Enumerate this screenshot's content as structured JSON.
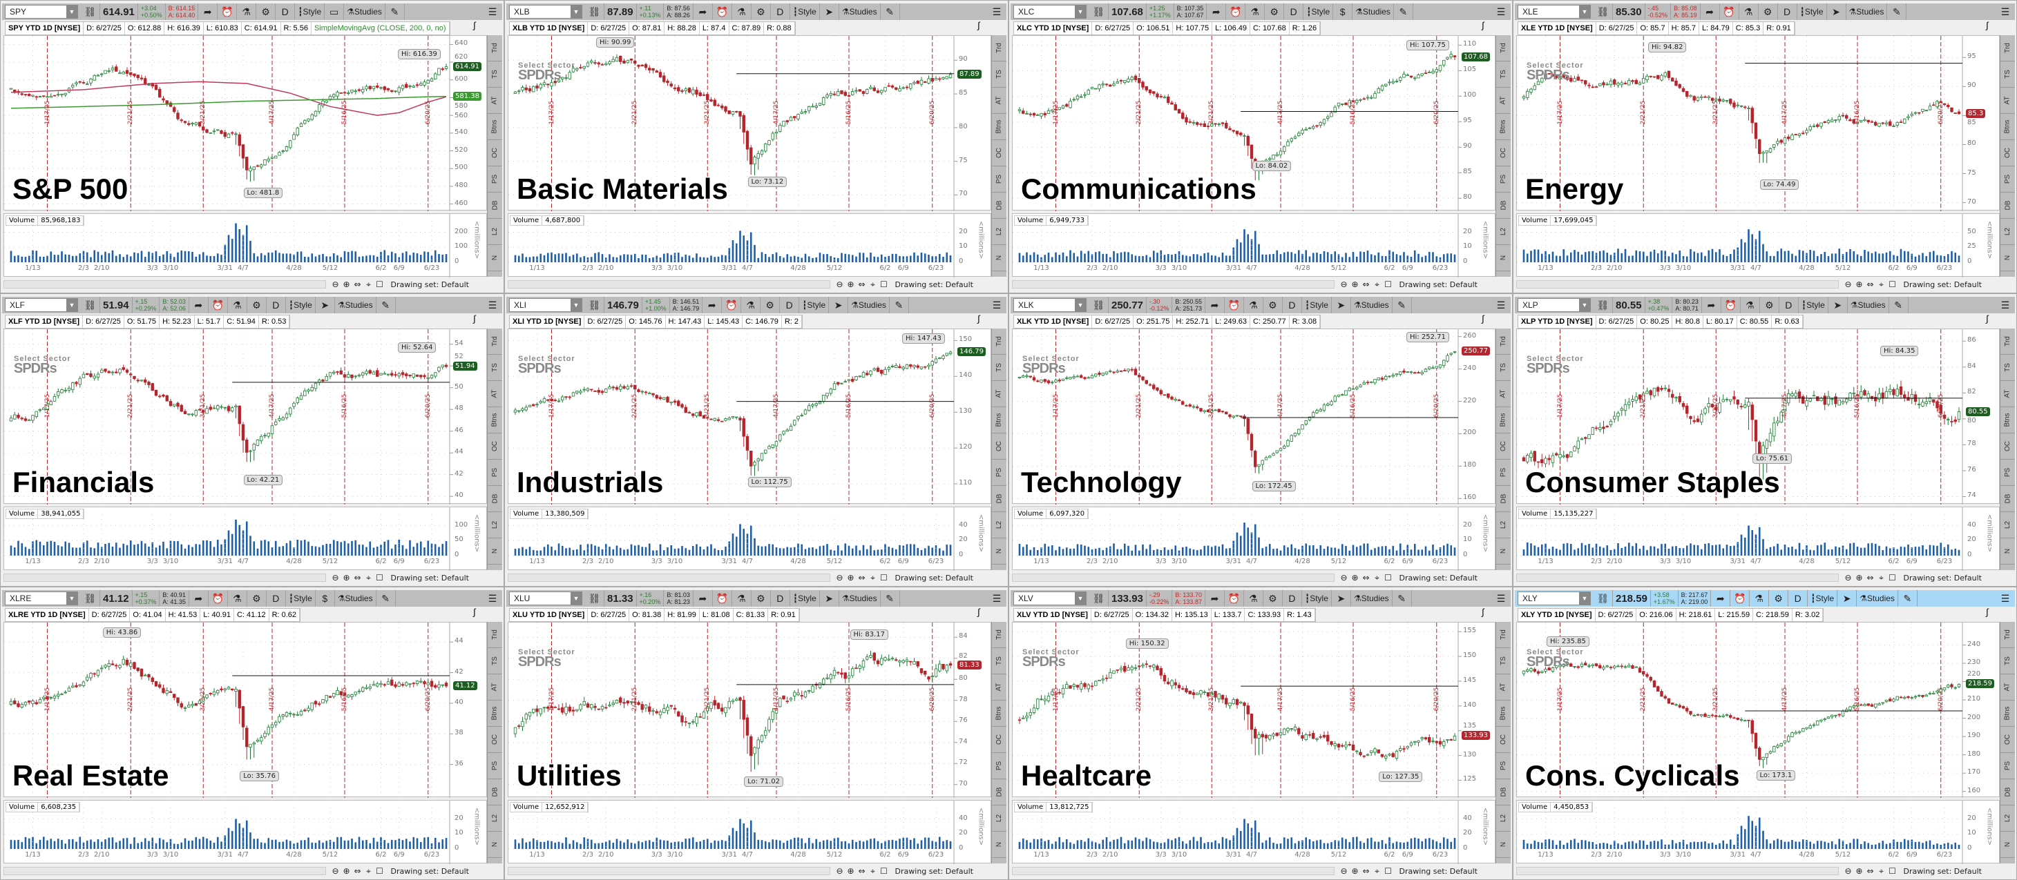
{
  "common": {
    "style_label": "Style",
    "studies_label": "Studies",
    "aggregation_label": "D",
    "volume_label": "Volume",
    "drawing_set_label": "Drawing set: Default",
    "millions_label": "<millions>",
    "side_tabs": [
      "Trd",
      "TS",
      "AT",
      "Btns",
      "OC",
      "PS",
      "DB",
      "L2",
      "N"
    ],
    "date_labels": [
      "1/13",
      "2/3",
      "2/10",
      "3/3",
      "3/10",
      "3/31",
      "4/7",
      "4/28",
      "5/12",
      "6/2",
      "6/9",
      "6/23"
    ],
    "expiration_labels": [
      "1/17/25",
      "2/21/25",
      "3/21/25",
      "4/17/25",
      "5/16/25",
      "6/20/25"
    ],
    "logo_line1": "Select Sector",
    "logo_line2": "SPDRs",
    "colors": {
      "up": "#1e7b34",
      "down": "#b3262d",
      "volume": "#1f5fa8",
      "expiration_line": "#b3262d",
      "toolbar": "#bdbdbd",
      "active_toolbar": "#a8d8f6"
    },
    "icons": [
      "link-icon",
      "share-icon",
      "alert-icon",
      "flask-icon",
      "gear-icon",
      "candlestick-icon",
      "cursor-icon",
      "drawing-icon",
      "menu-icon"
    ]
  },
  "panels": [
    {
      "ticker": "SPY",
      "label": "S&P 500",
      "last": "614.91",
      "change": "+3.04",
      "change_pct": "+0.50%",
      "dir": "up",
      "bid": "B: 614.15",
      "ask": "A: 614.40",
      "bid_dir": "dn",
      "title": "SPY YTD 1D [NYSE]",
      "d": "D: 6/27/25",
      "o": "O: 612.88",
      "h": "H: 616.39",
      "l": "L: 610.83",
      "c": "C: 614.91",
      "r": "R: 5.56",
      "study": "SimpleMovingAvg (CLOSE, 200, 0, no)",
      "hi": "Hi: 616.39",
      "lo": "Lo: 481.8",
      "tag_color": "#1b5e20",
      "volume": "85,968,183",
      "logo": false,
      "tool": "▭",
      "chart_data": {
        "type": "candlestick",
        "price_range": [
          455,
          645
        ],
        "price_ticks": [
          640,
          620,
          600,
          580,
          560,
          540,
          520,
          500,
          480,
          460
        ],
        "hi_value": 616.39,
        "lo_value": 481.8,
        "close_path": [
          590,
          582,
          598,
          612,
          590,
          552,
          536,
          496,
          515,
          582,
          592,
          595,
          614.91
        ],
        "sma_200": [
          586,
          589,
          596,
          598,
          596,
          585,
          570,
          560,
          563,
          575,
          581
        ],
        "second_ma": [
          568,
          570,
          572,
          574,
          576,
          577,
          578,
          579,
          580,
          581,
          581.38
        ],
        "second_ma_label": "581.38",
        "volume_ticks": [
          0,
          100,
          200
        ],
        "volume_typical": 60,
        "volume_peak": 260,
        "level_line": null
      }
    },
    {
      "ticker": "XLB",
      "label": "Basic Materials",
      "last": "87.89",
      "change": "+.11",
      "change_pct": "+0.13%",
      "dir": "up",
      "bid": "B: 87.56",
      "ask": "A: 88.26",
      "bid_dir": "",
      "title": "XLB YTD 1D [NYSE]",
      "d": "D: 6/27/25",
      "o": "O: 87.81",
      "h": "H: 88.28",
      "l": "L: 87.4",
      "c": "C: 87.89",
      "r": "R: 0.88",
      "study": "",
      "hi": "Hi: 90.99",
      "lo": "Lo: 73.12",
      "tag_color": "#1b5e20",
      "volume": "4,687,800",
      "logo": true,
      "tool": "➤",
      "chart_data": {
        "type": "candlestick",
        "price_range": [
          68,
          93
        ],
        "price_ticks": [
          90,
          85,
          80,
          75,
          70
        ],
        "hi_value": 90.99,
        "lo_value": 73.12,
        "close_path": [
          85,
          86,
          89,
          89.5,
          88,
          86,
          82,
          75,
          80,
          85,
          86,
          87,
          87.89
        ],
        "volume_ticks": [
          0,
          10,
          20
        ],
        "volume_typical": 5,
        "volume_peak": 21,
        "level_line": 88
      }
    },
    {
      "ticker": "XLC",
      "label": "Communications",
      "last": "107.68",
      "change": "+1.25",
      "change_pct": "+1.17%",
      "dir": "up",
      "bid": "B: 107.35",
      "ask": "A: 107.67",
      "bid_dir": "",
      "title": "XLC YTD 1D [NYSE]",
      "d": "D: 6/27/25",
      "o": "O: 106.51",
      "h": "H: 107.75",
      "l": "L: 106.49",
      "c": "C: 107.68",
      "r": "R: 1.26",
      "study": "",
      "hi": "Hi: 107.75",
      "lo": "Lo: 84.02",
      "tag_color": "#1b5e20",
      "volume": "6,949,733",
      "logo": false,
      "tool": "$",
      "chart_data": {
        "type": "candlestick",
        "price_range": [
          78,
          111
        ],
        "price_ticks": [
          110,
          105,
          100,
          95,
          90,
          85,
          80
        ],
        "hi_value": 107.75,
        "lo_value": 84.02,
        "close_path": [
          97,
          96,
          101,
          104,
          100,
          95,
          93,
          86,
          90,
          98,
          102,
          106,
          107.68
        ],
        "volume_ticks": [
          0,
          10,
          20
        ],
        "volume_typical": 6,
        "volume_peak": 22,
        "level_line": 97
      }
    },
    {
      "ticker": "XLE",
      "label": "Energy",
      "last": "85.30",
      "change": "-.45",
      "change_pct": "-0.52%",
      "dir": "dn",
      "bid": "B: 85.08",
      "ask": "A: 85.19",
      "bid_dir": "dn",
      "title": "XLE YTD 1D [NYSE]",
      "d": "D: 6/27/25",
      "o": "O: 85.7",
      "h": "H: 85.7",
      "l": "L: 84.79",
      "c": "C: 85.3",
      "r": "R: 0.91",
      "study": "",
      "hi": "Hi: 94.82",
      "lo": "Lo: 74.49",
      "tag_color": "#b3262d",
      "tag_text": "85.3",
      "volume": "17,699,045",
      "logo": true,
      "tool": "➤",
      "chart_data": {
        "type": "candlestick",
        "price_range": [
          69,
          98
        ],
        "price_ticks": [
          95,
          90,
          85,
          80,
          75,
          70
        ],
        "hi_value": 94.82,
        "lo_value": 74.49,
        "close_path": [
          88,
          93,
          90,
          91,
          92,
          88,
          86,
          78,
          81,
          85,
          83,
          87,
          85.3
        ],
        "volume_ticks": [
          0,
          25,
          50
        ],
        "volume_typical": 17,
        "volume_peak": 55,
        "level_line": 94
      }
    },
    {
      "ticker": "XLF",
      "label": "Financials",
      "last": "51.94",
      "change": "+.15",
      "change_pct": "+0.29%",
      "dir": "up",
      "bid": "B: 52.03",
      "ask": "A: 52.06",
      "bid_dir": "up",
      "title": "XLF YTD 1D [NYSE]",
      "d": "D: 6/27/25",
      "o": "O: 51.75",
      "h": "H: 52.23",
      "l": "L: 51.7",
      "c": "C: 51.94",
      "r": "R: 0.53",
      "study": "",
      "hi": "Hi: 52.64",
      "lo": "Lo: 42.21",
      "tag_color": "#1b5e20",
      "volume": "38,941,055",
      "logo": true,
      "tool": "➤",
      "chart_data": {
        "type": "candlestick",
        "price_range": [
          39.5,
          55
        ],
        "price_ticks": [
          54,
          52,
          50,
          48,
          46,
          44,
          42,
          40
        ],
        "hi_value": 52.64,
        "lo_value": 42.21,
        "close_path": [
          47,
          47.5,
          51,
          52,
          50,
          48,
          48,
          44,
          47,
          51,
          51,
          51,
          51.94
        ],
        "volume_ticks": [
          0,
          50,
          100
        ],
        "volume_typical": 40,
        "volume_peak": 120,
        "level_line": 50.5
      }
    },
    {
      "ticker": "XLI",
      "label": "Industrials",
      "last": "146.79",
      "change": "+1.45",
      "change_pct": "+1.00%",
      "dir": "up",
      "bid": "B: 146.51",
      "ask": "A: 146.79",
      "bid_dir": "",
      "title": "XLI YTD 1D [NYSE]",
      "d": "D: 6/27/25",
      "o": "O: 145.76",
      "h": "H: 147.43",
      "l": "L: 145.43",
      "c": "C: 146.79",
      "r": "R: 2",
      "study": "",
      "hi": "Hi: 147.43",
      "lo": "Lo: 112.75",
      "tag_color": "#1b5e20",
      "volume": "13,380,509",
      "logo": true,
      "tool": "➤",
      "chart_data": {
        "type": "candlestick",
        "price_range": [
          105,
          152
        ],
        "price_ticks": [
          150,
          140,
          130,
          120,
          110
        ],
        "hi_value": 147.43,
        "lo_value": 112.75,
        "close_path": [
          130,
          132,
          137,
          138,
          135,
          130,
          128,
          116,
          124,
          138,
          142,
          144,
          146.79
        ],
        "volume_ticks": [
          0,
          20,
          40
        ],
        "volume_typical": 12,
        "volume_peak": 42,
        "level_line": 133
      }
    },
    {
      "ticker": "XLK",
      "label": "Technology",
      "last": "250.77",
      "change": "-.30",
      "change_pct": "-0.12%",
      "dir": "dn",
      "bid": "B: 250.55",
      "ask": "A: 251.73",
      "bid_dir": "",
      "title": "XLK YTD 1D [NYSE]",
      "d": "D: 6/27/25",
      "o": "O: 251.75",
      "h": "H: 252.71",
      "l": "L: 249.63",
      "c": "C: 250.77",
      "r": "R: 3.08",
      "study": "",
      "hi": "Hi: 252.71",
      "lo": "Lo: 172.45",
      "tag_color": "#b3262d",
      "volume": "6,097,320",
      "logo": true,
      "tool": "➤",
      "chart_data": {
        "type": "candlestick",
        "price_range": [
          158,
          262
        ],
        "price_ticks": [
          260,
          240,
          220,
          200,
          180,
          160
        ],
        "hi_value": 252.71,
        "lo_value": 172.45,
        "close_path": [
          235,
          232,
          235,
          240,
          225,
          215,
          210,
          180,
          195,
          225,
          235,
          243,
          250.77
        ],
        "volume_ticks": [
          0,
          10,
          20
        ],
        "volume_typical": 6,
        "volume_peak": 22,
        "level_line": 210
      }
    },
    {
      "ticker": "XLP",
      "label": "Consumer Staples",
      "last": "80.55",
      "change": "+.38",
      "change_pct": "+0.47%",
      "dir": "up",
      "bid": "B: 80.23",
      "ask": "A: 80.71",
      "bid_dir": "",
      "title": "XLP YTD 1D [NYSE]",
      "d": "D: 6/27/25",
      "o": "O: 80.25",
      "h": "H: 80.8",
      "l": "L: 80.17",
      "c": "C: 80.55",
      "r": "R: 0.63",
      "study": "",
      "hi": "Hi: 84.35",
      "lo": "Lo: 75.61",
      "tag_color": "#1b5e20",
      "volume": "15,135,227",
      "logo": true,
      "tool": "➤",
      "chart_data": {
        "type": "candlestick",
        "price_range": [
          73.6,
          86.6
        ],
        "price_ticks": [
          86,
          84,
          82,
          80,
          78,
          76,
          74
        ],
        "hi_value": 84.35,
        "lo_value": 75.61,
        "close_path": [
          77,
          76.5,
          79,
          82,
          82.5,
          80,
          81.5,
          77,
          82,
          81.5,
          82,
          81,
          80.55
        ],
        "volume_ticks": [
          0,
          20,
          40
        ],
        "volume_typical": 13,
        "volume_peak": 40,
        "level_line": 81.6
      }
    },
    {
      "ticker": "XLRE",
      "label": "Real Estate",
      "last": "41.12",
      "change": "+.15",
      "change_pct": "+0.37%",
      "dir": "up",
      "bid": "B: 40.91",
      "ask": "A: 41.35",
      "bid_dir": "",
      "title": "XLRE YTD 1D [NYSE]",
      "d": "D: 6/27/25",
      "o": "O: 41.04",
      "h": "H: 41.53",
      "l": "L: 40.91",
      "c": "C: 41.12",
      "r": "R: 0.62",
      "study": "",
      "hi": "Hi: 43.86",
      "lo": "Lo: 35.76",
      "tag_color": "#1b5e20",
      "volume": "6,608,235",
      "logo": false,
      "tool": "$",
      "chart_data": {
        "type": "candlestick",
        "price_range": [
          34,
          45
        ],
        "price_ticks": [
          44,
          42,
          40,
          38,
          36
        ],
        "hi_value": 43.86,
        "lo_value": 35.76,
        "close_path": [
          40,
          40,
          41,
          43,
          41.5,
          40,
          40.5,
          37,
          39,
          40.5,
          41,
          41.5,
          41.12
        ],
        "volume_ticks": [
          0,
          10,
          20
        ],
        "volume_typical": 6,
        "volume_peak": 20,
        "level_line": 41.8
      }
    },
    {
      "ticker": "XLU",
      "label": "Utilities",
      "last": "81.33",
      "change": "+.16",
      "change_pct": "+0.20%",
      "dir": "up",
      "bid": "B: 81.03",
      "ask": "A: 81.23",
      "bid_dir": "",
      "title": "XLU YTD 1D [NYSE]",
      "d": "D: 6/27/25",
      "o": "O: 81.38",
      "h": "H: 81.99",
      "l": "L: 81.08",
      "c": "C: 81.33",
      "r": "R: 0.91",
      "study": "",
      "hi": "Hi: 83.17",
      "lo": "Lo: 71.02",
      "tag_color": "#b3262d",
      "volume": "12,652,912",
      "logo": true,
      "tool": "➤",
      "chart_data": {
        "type": "candlestick",
        "price_range": [
          69,
          85
        ],
        "price_ticks": [
          84,
          82,
          80,
          78,
          76,
          74,
          72,
          70
        ],
        "hi_value": 83.17,
        "lo_value": 71.02,
        "close_path": [
          75,
          77,
          77.5,
          78,
          77,
          76,
          78,
          73,
          78,
          80,
          82,
          80.5,
          81.33
        ],
        "volume_ticks": [
          0,
          20,
          40
        ],
        "volume_typical": 12,
        "volume_peak": 40,
        "level_line": 79.5
      }
    },
    {
      "ticker": "XLV",
      "label": "Healtcare",
      "last": "133.93",
      "change": "-.29",
      "change_pct": "-0.22%",
      "dir": "dn",
      "bid": "B: 133.70",
      "ask": "A: 133.87",
      "bid_dir": "dn",
      "title": "XLV YTD 1D [NYSE]",
      "d": "D: 6/27/25",
      "o": "O: 134.32",
      "h": "H: 135.13",
      "l": "L: 133.7",
      "c": "C: 133.93",
      "r": "R: 1.43",
      "study": "",
      "hi": "Hi: 150.32",
      "lo": "Lo: 127.35",
      "tag_color": "#b3262d",
      "volume": "13,812,725",
      "logo": true,
      "tool": "➤",
      "chart_data": {
        "type": "candlestick",
        "price_range": [
          122,
          156
        ],
        "price_ticks": [
          155,
          150,
          145,
          140,
          135,
          130,
          125
        ],
        "hi_value": 150.32,
        "lo_value": 127.35,
        "close_path": [
          137,
          142,
          145,
          148,
          146,
          144,
          140,
          133,
          135,
          132,
          130,
          133,
          133.93
        ],
        "volume_ticks": [
          0,
          20,
          40
        ],
        "volume_typical": 12,
        "volume_peak": 40,
        "level_line": 144
      }
    },
    {
      "ticker": "XLY",
      "label": "Cons. Cyclicals",
      "last": "218.59",
      "change": "+3.58",
      "change_pct": "+1.67%",
      "dir": "up",
      "bid": "B: 217.67",
      "ask": "A: 219.00",
      "bid_dir": "",
      "title": "XLY YTD 1D [NYSE]",
      "d": "D: 6/27/25",
      "o": "O: 216.06",
      "h": "H: 218.61",
      "l": "L: 215.59",
      "c": "C: 218.59",
      "r": "R: 3.02",
      "study": "",
      "hi": "Hi: 235.85",
      "lo": "Lo: 173.1",
      "tag_color": "#1b5e20",
      "volume": "4,450,853",
      "logo": true,
      "tool": "➤",
      "active": true,
      "chart_data": {
        "type": "candlestick",
        "price_range": [
          158,
          250
        ],
        "price_ticks": [
          240,
          230,
          220,
          210,
          200,
          190,
          180,
          170,
          160
        ],
        "hi_value": 235.85,
        "lo_value": 173.1,
        "close_path": [
          225,
          226,
          230,
          228,
          210,
          200,
          200,
          178,
          190,
          205,
          211,
          214,
          218.59
        ],
        "volume_ticks": [
          0,
          10,
          20
        ],
        "volume_typical": 5,
        "volume_peak": 22,
        "level_line": 204
      }
    }
  ]
}
